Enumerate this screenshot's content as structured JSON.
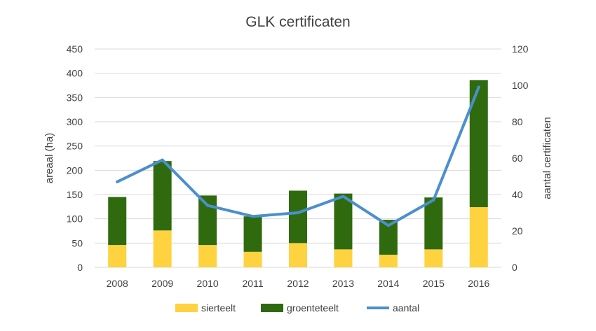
{
  "chart_data": {
    "type": "bar",
    "title": "GLK certificaten",
    "categories": [
      "2008",
      "2009",
      "2010",
      "2011",
      "2012",
      "2013",
      "2014",
      "2015",
      "2016"
    ],
    "series": [
      {
        "name": "sierteelt",
        "type": "bar",
        "axis": "left",
        "stacked": true,
        "color": "#FFD23F",
        "values": [
          46,
          76,
          46,
          32,
          50,
          37,
          26,
          37,
          124
        ]
      },
      {
        "name": "groenteteelt",
        "type": "bar",
        "axis": "left",
        "stacked": true,
        "color": "#2F6B0E",
        "values": [
          99,
          143,
          102,
          73,
          108,
          115,
          72,
          107,
          262
        ]
      },
      {
        "name": "aantal",
        "type": "line",
        "axis": "right",
        "color": "#4B8FCD",
        "values": [
          47,
          59,
          34,
          28,
          30,
          39,
          23,
          37,
          99
        ]
      }
    ],
    "ylabel": "areaal (ha)",
    "ylim": [
      0,
      450
    ],
    "yticks": [
      "0",
      "50",
      "100",
      "150",
      "200",
      "250",
      "300",
      "350",
      "400",
      "450"
    ],
    "y2label": "aantal certificaten",
    "y2lim": [
      0,
      120
    ],
    "y2ticks": [
      "0",
      "20",
      "40",
      "60",
      "80",
      "100",
      "120"
    ],
    "grid": true,
    "legend_position": "bottom",
    "colors": {
      "grid": "#D9D9D9",
      "text": "#404040"
    }
  }
}
